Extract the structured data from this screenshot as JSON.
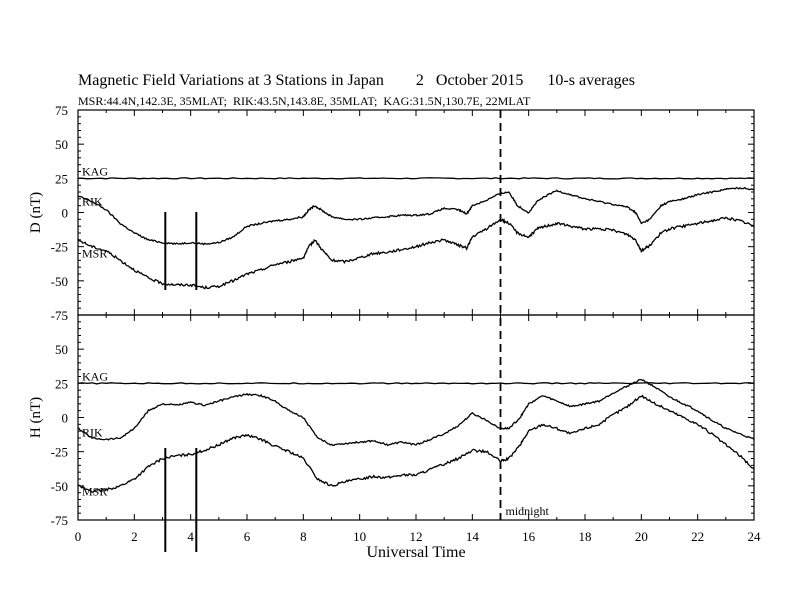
{
  "header": {
    "title": "Magnetic Field Variations at 3 Stations in Japan        2   October 2015      10-s averages",
    "subtitle": "MSR:44.4N,142.3E, 35MLAT;  RIK:43.5N,143.8E, 35MLAT;  KAG:31.5N,130.7E, 22MLAT"
  },
  "colors": {
    "axis": "#000000",
    "trace": "#000000"
  },
  "chart_data": [
    {
      "type": "line",
      "panel": "D",
      "ylabel": "D (nT)",
      "ylim": [
        -75,
        75
      ],
      "yticks": [
        75,
        50,
        25,
        0,
        -25,
        -50,
        -75
      ],
      "xlim": [
        0,
        24
      ],
      "series": [
        {
          "name": "KAG",
          "x": [
            0,
            2,
            4,
            6,
            8,
            10,
            12,
            14,
            16,
            18,
            20,
            22,
            24
          ],
          "values": [
            25,
            25,
            25,
            25,
            25,
            25,
            25,
            25,
            25,
            25,
            25,
            25,
            25
          ]
        },
        {
          "name": "RIK",
          "x": [
            0,
            0.5,
            1,
            1.5,
            2,
            2.5,
            3,
            3.5,
            4,
            4.5,
            5,
            5.5,
            6,
            6.5,
            7,
            7.5,
            8,
            8.2,
            8.4,
            8.7,
            9,
            9.5,
            10,
            10.5,
            11,
            11.5,
            12,
            12.5,
            13,
            13.5,
            13.8,
            14,
            14.5,
            15,
            15.3,
            15.6,
            16,
            16.3,
            16.6,
            17,
            17.5,
            18,
            18.5,
            19,
            19.5,
            19.8,
            20,
            20.3,
            20.7,
            21,
            21.5,
            22,
            22.5,
            23,
            23.5,
            24
          ],
          "values": [
            12,
            8,
            2,
            -8,
            -15,
            -20,
            -22,
            -23,
            -22,
            -23,
            -22,
            -18,
            -10,
            -8,
            -6,
            -5,
            -3,
            2,
            5,
            1,
            -3,
            -5,
            -5,
            -4,
            -3,
            -2,
            -2,
            -1,
            3,
            2,
            -1,
            5,
            9,
            14,
            15,
            5,
            0,
            8,
            12,
            16,
            13,
            10,
            8,
            6,
            4,
            0,
            -8,
            -5,
            5,
            8,
            10,
            13,
            15,
            17,
            18,
            17
          ]
        },
        {
          "name": "MSR",
          "x": [
            0,
            0.5,
            1,
            1.5,
            2,
            2.5,
            3,
            3.5,
            4,
            4.5,
            5,
            5.5,
            6,
            6.5,
            7,
            7.5,
            8,
            8.2,
            8.4,
            8.7,
            9,
            9.5,
            10,
            10.5,
            11,
            11.5,
            12,
            12.5,
            13,
            13.5,
            13.8,
            14,
            14.5,
            15,
            15.3,
            15.6,
            16,
            16.3,
            16.6,
            17,
            17.5,
            18,
            18.5,
            19,
            19.5,
            19.8,
            20,
            20.3,
            20.7,
            21,
            21.5,
            22,
            22.5,
            23,
            23.5,
            24
          ],
          "values": [
            -20,
            -25,
            -28,
            -35,
            -42,
            -48,
            -52,
            -53,
            -53,
            -55,
            -54,
            -50,
            -45,
            -42,
            -38,
            -36,
            -33,
            -25,
            -20,
            -28,
            -35,
            -36,
            -33,
            -30,
            -29,
            -27,
            -25,
            -22,
            -20,
            -24,
            -26,
            -18,
            -12,
            -5,
            -8,
            -15,
            -18,
            -12,
            -10,
            -8,
            -10,
            -12,
            -12,
            -13,
            -16,
            -20,
            -28,
            -24,
            -15,
            -12,
            -10,
            -8,
            -6,
            -4,
            -6,
            -10
          ]
        }
      ],
      "annotations": [
        "KAG",
        "RIK",
        "MSR"
      ]
    },
    {
      "type": "line",
      "panel": "H",
      "ylabel": "H (nT)",
      "xlabel": "Universal Time",
      "ylim": [
        -75,
        75
      ],
      "yticks": [
        50,
        25,
        0,
        -25,
        -50,
        -75
      ],
      "xlim": [
        0,
        24
      ],
      "xticks": [
        0,
        2,
        4,
        6,
        8,
        10,
        12,
        14,
        16,
        18,
        20,
        22,
        24
      ],
      "series": [
        {
          "name": "KAG",
          "x": [
            0,
            2,
            4,
            6,
            8,
            10,
            12,
            14,
            16,
            18,
            20,
            22,
            24
          ],
          "values": [
            25,
            25,
            25,
            25,
            25,
            25,
            25,
            25,
            25,
            25,
            25,
            25,
            25
          ]
        },
        {
          "name": "RIK",
          "x": [
            0,
            0.5,
            1,
            1.5,
            2,
            2.5,
            3,
            3.5,
            4,
            4.5,
            5,
            5.5,
            6,
            6.5,
            7,
            7.5,
            8,
            8.5,
            9,
            9.5,
            10,
            10.5,
            11,
            11.5,
            12,
            12.5,
            13,
            13.5,
            14,
            14.5,
            15,
            15.3,
            15.7,
            16,
            16.5,
            17,
            17.5,
            18,
            18.5,
            19,
            19.5,
            20,
            20.5,
            21,
            21.5,
            22,
            22.5,
            23,
            23.5,
            24
          ],
          "values": [
            -8,
            -15,
            -16,
            -15,
            -8,
            5,
            10,
            9,
            11,
            9,
            12,
            15,
            17,
            16,
            12,
            5,
            0,
            -15,
            -20,
            -19,
            -18,
            -17,
            -20,
            -18,
            -20,
            -16,
            -12,
            -6,
            3,
            -2,
            -8,
            -8,
            0,
            10,
            16,
            12,
            8,
            10,
            12,
            18,
            23,
            28,
            22,
            15,
            10,
            5,
            -2,
            -8,
            -12,
            -16
          ]
        },
        {
          "name": "MSR",
          "x": [
            0,
            0.5,
            1,
            1.5,
            2,
            2.5,
            3,
            3.5,
            4,
            4.5,
            5,
            5.5,
            6,
            6.5,
            7,
            7.5,
            8,
            8.5,
            9,
            9.5,
            10,
            10.5,
            11,
            11.5,
            12,
            12.5,
            13,
            13.5,
            14,
            14.5,
            15,
            15.3,
            15.7,
            16,
            16.5,
            17,
            17.5,
            18,
            18.5,
            19,
            19.5,
            20,
            20.5,
            21,
            21.5,
            22,
            22.5,
            23,
            23.5,
            24
          ],
          "values": [
            -50,
            -54,
            -53,
            -50,
            -45,
            -36,
            -30,
            -28,
            -27,
            -24,
            -20,
            -15,
            -13,
            -16,
            -21,
            -25,
            -30,
            -45,
            -50,
            -47,
            -45,
            -43,
            -44,
            -42,
            -42,
            -38,
            -34,
            -30,
            -24,
            -25,
            -32,
            -30,
            -20,
            -10,
            -5,
            -8,
            -12,
            -8,
            -5,
            2,
            8,
            16,
            10,
            5,
            0,
            -5,
            -12,
            -20,
            -28,
            -38
          ]
        }
      ],
      "annotations": [
        "KAG",
        "RIK",
        "MSR",
        "midnight"
      ]
    }
  ],
  "markers": {
    "midnight_ut": 15,
    "midnight_label": "midnight"
  }
}
